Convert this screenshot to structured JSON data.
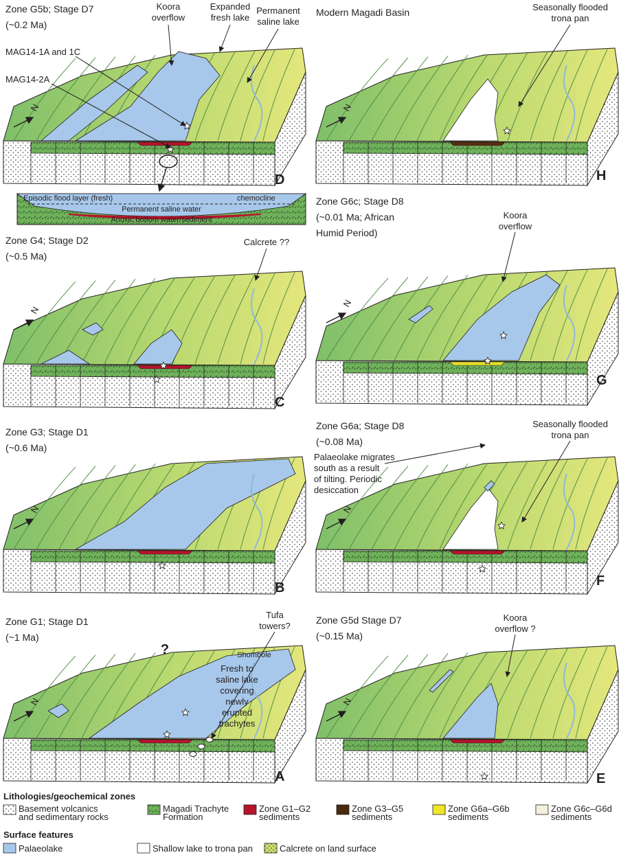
{
  "panels": [
    {
      "title": [
        "Zone G5b; Stage D7",
        "(~0.2 Ma)"
      ],
      "letter": "D",
      "labels": [
        [
          "Koora",
          "overflow"
        ],
        [
          "Expanded",
          "fresh lake"
        ],
        [
          "Permanent",
          "saline lake"
        ],
        [
          "MAG14-1A and 1C"
        ],
        [
          "MAG14-2A"
        ]
      ]
    },
    {
      "title": [
        "Zone G4; Stage D2",
        "(~0.5 Ma)"
      ],
      "letter": "C",
      "labels": [
        [
          "Calcrete ??"
        ]
      ]
    },
    {
      "title": [
        "Zone G3; Stage D1",
        "(~0.6 Ma)"
      ],
      "letter": "B",
      "labels": []
    },
    {
      "title": [
        "Zone G1; Stage D1",
        "(~1 Ma)"
      ],
      "letter": "A",
      "labels": [
        [
          "Tufa",
          "towers?"
        ],
        [
          "Shombole"
        ],
        [
          "Fresh to",
          "saline lake",
          "covering",
          "newly",
          "erupted",
          "trachytes"
        ],
        [
          "?"
        ]
      ]
    },
    {
      "title": [
        "Modern Magadi Basin"
      ],
      "letter": "H",
      "labels": [
        [
          "Seasonally flooded",
          "trona pan"
        ]
      ]
    },
    {
      "title": [
        "Zone G6c; Stage D8",
        "(~0.01 Ma; African",
        "Humid Period)"
      ],
      "letter": "G",
      "labels": [
        [
          "Koora",
          "overflow"
        ]
      ]
    },
    {
      "title": [
        "Zone G6a; Stage D8",
        "(~0.08 Ma)"
      ],
      "letter": "F",
      "labels": [
        [
          "Palaeolake migrates",
          "south as a result",
          "of tilting. Periodic",
          "desiccation"
        ],
        [
          "Seasonally flooded",
          "trona pan"
        ]
      ]
    },
    {
      "title": [
        "Zone G5d Stage D7",
        "(~0.15 Ma)"
      ],
      "letter": "E",
      "labels": [
        [
          "Koora",
          "overflow ?"
        ]
      ]
    }
  ],
  "north_label": "N",
  "cross_section": {
    "flood": "Episodic flood layer (fresh)",
    "chemocline": "chemocline",
    "saline": "Permanent saline water",
    "anoxic": "Anoxic bottom water/sediment"
  },
  "legend": {
    "lithologies_title": "Lithologies/geochemical zones",
    "lithologies": [
      [
        "Basement volcanics",
        "and sedimentary rocks"
      ],
      [
        "Magadi Trachyte",
        "Formation"
      ],
      [
        "Zone G1–G2",
        "sediments"
      ],
      [
        "Zone G3–G5",
        "sediments"
      ],
      [
        "Zone G6a–G6b",
        "sediments"
      ],
      [
        "Zone G6c–G6d",
        "sediments"
      ]
    ],
    "surface_title": "Surface features",
    "surface": [
      "Palaeolake",
      "Shallow lake to trona pan",
      "Calcrete on land surface"
    ]
  }
}
